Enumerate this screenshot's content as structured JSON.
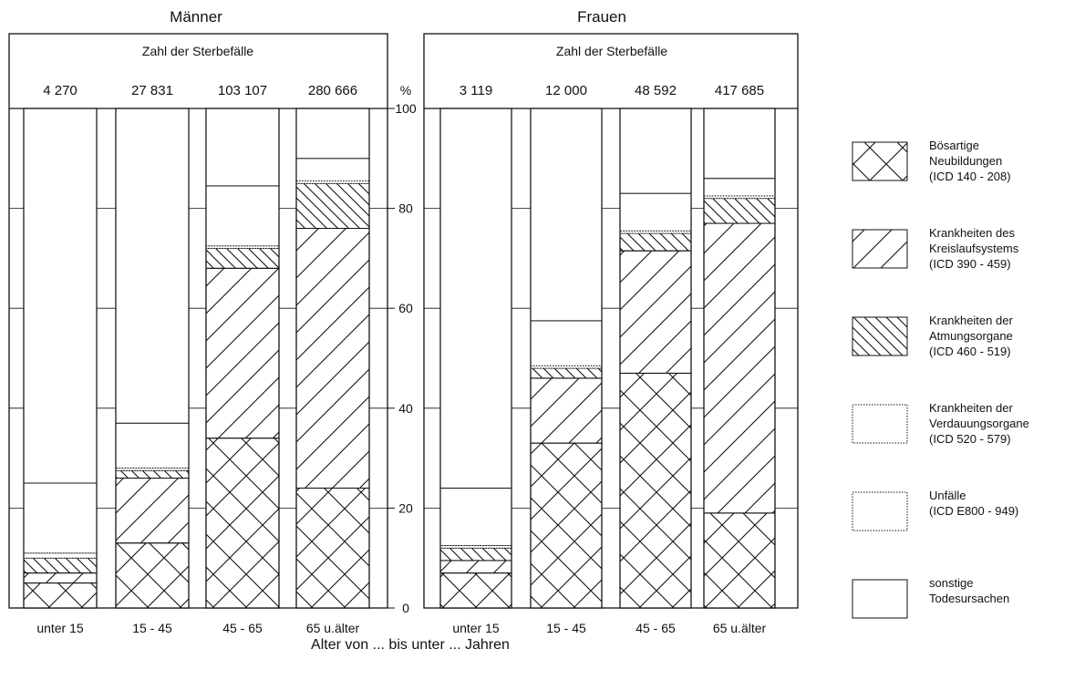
{
  "chart_data": {
    "type": "bar",
    "stacked": true,
    "percent_scale": true,
    "xlabel": "Alter von ... bis unter ... Jahren",
    "ylabel": "%",
    "header_label": "Zahl der Sterbefälle",
    "ylim": [
      0,
      100
    ],
    "yticks": [
      0,
      20,
      40,
      60,
      80,
      100
    ],
    "categories": [
      "unter 15",
      "15 - 45",
      "45 - 65",
      "65 u.älter"
    ],
    "legend_position": "right",
    "legend": [
      {
        "key": "neubildungen",
        "lines": [
          "Bösartige",
          "Neubildungen",
          "(ICD  140 - 208)"
        ]
      },
      {
        "key": "kreislauf",
        "lines": [
          "Krankheiten des",
          "Kreislaufsystems",
          "(ICD  390 - 459)"
        ]
      },
      {
        "key": "atmung",
        "lines": [
          "Krankheiten der",
          "Atmungsorgane",
          "(ICD  460 - 519)"
        ]
      },
      {
        "key": "verdauung",
        "lines": [
          "Krankheiten der",
          "Verdauungsorgane",
          "(ICD  520 - 579)"
        ]
      },
      {
        "key": "unfaelle",
        "lines": [
          "Unfälle",
          "(ICD  E800 - 949)"
        ]
      },
      {
        "key": "sonstige",
        "lines": [
          "sonstige",
          "Todesursachen"
        ]
      }
    ],
    "panels": [
      {
        "title": "Männer",
        "counts": [
          "4 270",
          "27 831",
          "103 107",
          "280 666"
        ],
        "series": [
          {
            "key": "neubildungen",
            "values": [
              5,
              13,
              34,
              24
            ]
          },
          {
            "key": "kreislauf",
            "values": [
              2,
              13,
              34,
              52
            ]
          },
          {
            "key": "atmung",
            "values": [
              3,
              1.5,
              4,
              9
            ]
          },
          {
            "key": "verdauung",
            "values": [
              1,
              0.5,
              0.5,
              0.5
            ]
          },
          {
            "key": "unfaelle",
            "values": [
              14,
              9,
              12,
              4.5
            ]
          },
          {
            "key": "sonstige",
            "values": [
              75,
              63,
              15.5,
              10
            ]
          }
        ]
      },
      {
        "title": "Frauen",
        "counts": [
          "3 119",
          "12 000",
          "48 592",
          "417 685"
        ],
        "series": [
          {
            "key": "neubildungen",
            "values": [
              7,
              33,
              47,
              19
            ]
          },
          {
            "key": "kreislauf",
            "values": [
              2.5,
              13,
              24.5,
              58
            ]
          },
          {
            "key": "atmung",
            "values": [
              2.5,
              2,
              3.5,
              5
            ]
          },
          {
            "key": "verdauung",
            "values": [
              0.5,
              0.5,
              0.5,
              0.5
            ]
          },
          {
            "key": "unfaelle",
            "values": [
              11.5,
              9,
              7.5,
              3.5
            ]
          },
          {
            "key": "sonstige",
            "values": [
              76,
              42.5,
              17,
              14
            ]
          }
        ]
      }
    ]
  }
}
